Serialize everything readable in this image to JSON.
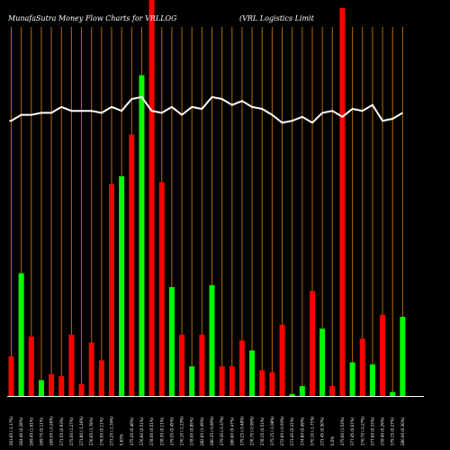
{
  "chart_data": {
    "type": "bar",
    "title_left": "MunafaSutra  Money Flow  Charts for VRLLOG",
    "title_right": "(VRL  Logistics Limit",
    "background": "#000000",
    "colors": {
      "up": "#00ff00",
      "down": "#ff0000",
      "grid": "#b36b00",
      "line": "#ffffff"
    },
    "ylim": [
      0,
      100
    ],
    "categories": [
      "263.65 (-1.17%)",
      "264.40 (0.28%)",
      "269.45 (1.91%)",
      "269.75 (0.11%)",
      "269.05 (-0.26%)",
      "271.55 (0.93%)",
      "275.00 (1.27%)",
      "271.80 (-1.16%)",
      "276.65 (1.78%)",
      "276.95 (0.11%)",
      "273.25 (-1.34%)",
      "0.65%",
      "275.20 (0.46%)",
      "276.60 (0.51%)",
      "278.00 (0.51%)",
      "278.30 (0.11%)",
      "279.55 (0.45%)",
      "276.10 (-1.23%)",
      "278.45 (0.85%)",
      "282.60 (1.49%)",
      "280.35 (-0.80%)",
      "279.30 (-0.37%)",
      "280.60 (0.47%)",
      "279.25 (-0.48%)",
      "276.75 (-0.90%)",
      "278.15 (0.51%)",
      "275.15 (-1.08%)",
      "272.60 (-0.93%)",
      "273.45 (0.31%)",
      "274.80 (0.49%)",
      "270.10 (-1.71%)",
      "271.45 (0.50%)",
      "0.5%",
      "275.60 (1.53%)",
      "277.45 (0.67%)",
      "276.70 (-0.27%)",
      "277.60 (0.33%)",
      "278.40 (0.29%)",
      "279.15 (0.27%)",
      "280.00 (0.30%)"
    ],
    "series": [
      {
        "values": [
          10,
          31,
          15,
          4,
          5.5,
          5,
          15.5,
          3,
          13.5,
          9,
          53.5,
          55.5,
          66,
          81,
          100,
          54,
          27.5,
          15.5,
          7.5,
          15.5,
          28,
          7.5,
          7.5,
          14,
          11.5,
          6.5,
          6,
          18,
          0.5,
          2.5,
          26.5,
          17,
          2.5,
          98,
          8.5,
          14.5,
          8,
          20.5,
          1,
          20
        ]
      },
      {
        "values": [
          69.5,
          71,
          71,
          71.5,
          71.5,
          73,
          72,
          72,
          72,
          71.5,
          73,
          72,
          75,
          75.5,
          72,
          71.5,
          73,
          71,
          73,
          72.5,
          75.5,
          75,
          73.5,
          74.5,
          73,
          72.5,
          71,
          69,
          69.5,
          70.5,
          69,
          71.5,
          72,
          70.5,
          72.5,
          72,
          73.5,
          69.5,
          70,
          71.5
        ]
      }
    ],
    "bar_colors": [
      "red",
      "green",
      "red",
      "green",
      "red",
      "red",
      "red",
      "red",
      "red",
      "red",
      "red",
      "green",
      "red",
      "green",
      "red",
      "red",
      "green",
      "red",
      "green",
      "red",
      "green",
      "red",
      "red",
      "red",
      "green",
      "red",
      "red",
      "red",
      "green",
      "green",
      "red",
      "green",
      "red",
      "red",
      "green",
      "red",
      "green",
      "red",
      "green",
      "green"
    ]
  }
}
